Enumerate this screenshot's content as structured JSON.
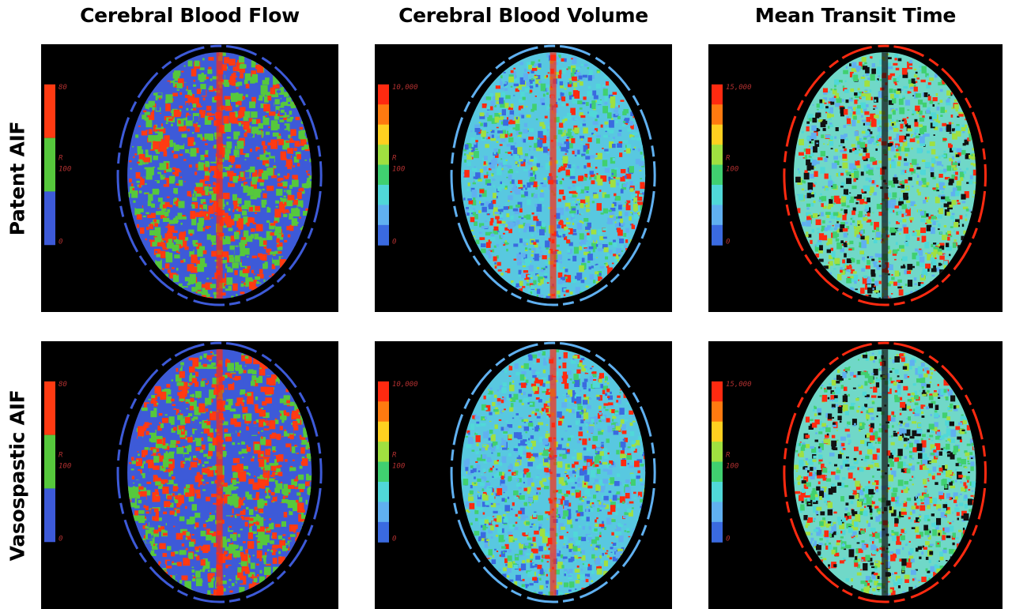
{
  "columns": [
    {
      "title": "Cerebral Blood Flow"
    },
    {
      "title": "Cerebral Blood Volume"
    },
    {
      "title": "Mean Transit Time"
    }
  ],
  "rows": [
    {
      "title": "Patent AIF"
    },
    {
      "title": "Vasospastic AIF"
    }
  ],
  "maps": {
    "cbf": {
      "max": "80",
      "mid": "R",
      "mid2": "100",
      "min": "0",
      "palette": "cbf-3-band"
    },
    "cbv": {
      "max": "10,000",
      "mid": "R",
      "mid2": "100",
      "min": "0",
      "palette": "rainbow"
    },
    "mtt": {
      "max": "15,000",
      "mid": "R",
      "mid2": "100",
      "min": "0",
      "palette": "rainbow"
    }
  },
  "colors": {
    "background": "#000000",
    "scale_label": "#b03030",
    "scale_text_light": "#d0d0d0",
    "cbf_red": "#ff3a12",
    "cbf_green": "#56c83c",
    "cbf_blue": "#3d5ad8",
    "rainbow": [
      "#ff2a10",
      "#ff7a10",
      "#ffd020",
      "#a0e040",
      "#40d070",
      "#50d8d8",
      "#60b0f0",
      "#3a6ae0"
    ]
  }
}
